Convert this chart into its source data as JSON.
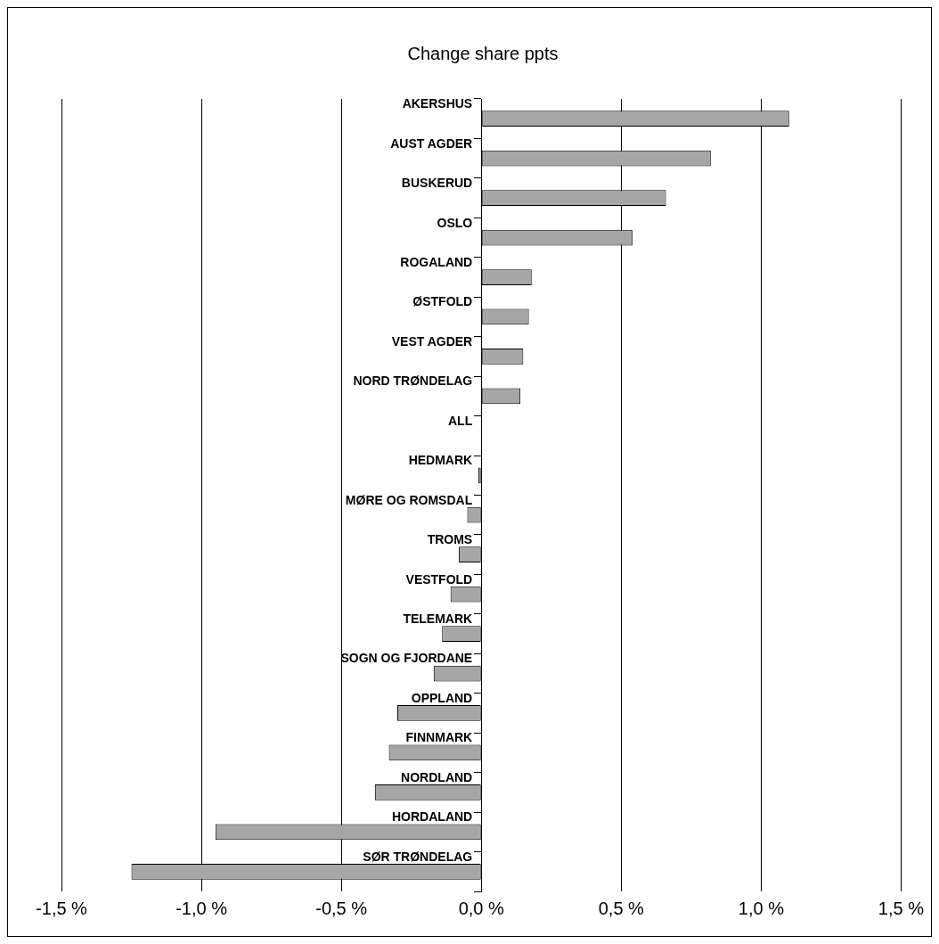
{
  "chart_data": {
    "type": "bar",
    "orientation": "horizontal",
    "title": "Change share ppts",
    "categories": [
      "AKERSHUS",
      "AUST AGDER",
      "BUSKERUD",
      "OSLO",
      "ROGALAND",
      "ØSTFOLD",
      "VEST AGDER",
      "NORD TRØNDELAG",
      "ALL",
      "HEDMARK",
      "MØRE OG ROMSDAL",
      "TROMS",
      "VESTFOLD",
      "TELEMARK",
      "SOGN OG FJORDANE",
      "OPPLAND",
      "FINNMARK",
      "NORDLAND",
      "HORDALAND",
      "SØR TRØNDELAG"
    ],
    "values": [
      1.1,
      0.82,
      0.66,
      0.54,
      0.18,
      0.17,
      0.15,
      0.14,
      0,
      -0.01,
      -0.05,
      -0.08,
      -0.11,
      -0.14,
      -0.17,
      -0.3,
      -0.33,
      -0.38,
      -0.95,
      -1.25
    ],
    "color": "#a6a6a6",
    "xlim": [
      -1.5,
      1.5
    ],
    "xticks": [
      {
        "value": -1.5,
        "label": "-1,5 %"
      },
      {
        "value": -1.0,
        "label": "-1,0 %"
      },
      {
        "value": -0.5,
        "label": "-0,5 %"
      },
      {
        "value": 0,
        "label": "0,0 %"
      },
      {
        "value": 0.5,
        "label": "0,5 %"
      },
      {
        "value": 1.0,
        "label": "1,0 %"
      },
      {
        "value": 1.5,
        "label": "1,5 %"
      }
    ],
    "grid": "x",
    "legend": false
  }
}
